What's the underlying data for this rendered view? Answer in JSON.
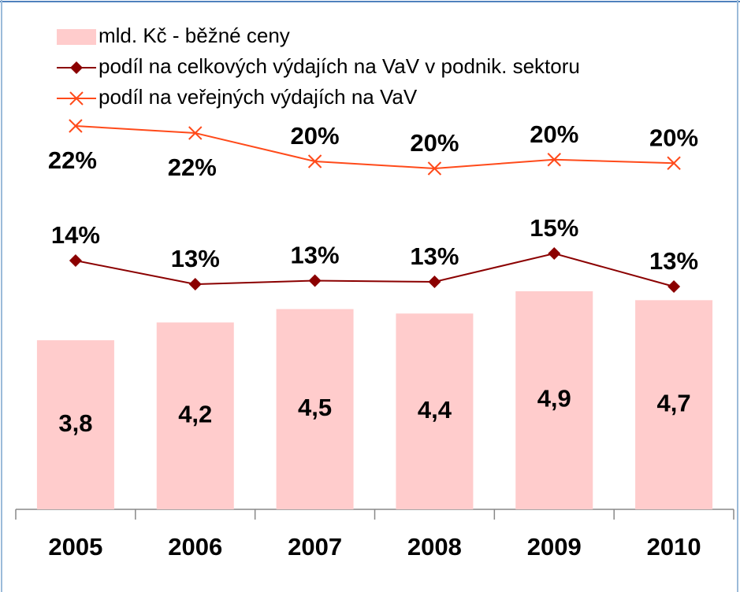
{
  "chart_data": {
    "type": "bar-line",
    "categories": [
      "2005",
      "2006",
      "2007",
      "2008",
      "2009",
      "2010"
    ],
    "series": [
      {
        "name": "mld. Kč - běžné ceny",
        "type": "bar",
        "color": "#ffcccc",
        "values": [
          3.8,
          4.2,
          4.5,
          4.4,
          4.9,
          4.7
        ],
        "value_labels": [
          "3,8",
          "4,2",
          "4,5",
          "4,4",
          "4,9",
          "4,7"
        ]
      },
      {
        "name": "podíl na celkových výdajích na VaV v podnik. sektoru",
        "type": "line",
        "marker": "diamond",
        "color": "#8b0000",
        "values": [
          14.3,
          13.3,
          13.45,
          13.4,
          14.6,
          13.2
        ],
        "value_labels": [
          "14%",
          "13%",
          "13%",
          "13%",
          "15%",
          "13%"
        ]
      },
      {
        "name": "podíl na veřejných výdajích na VaV",
        "type": "line",
        "marker": "x",
        "color": "#ff4a1a",
        "values": [
          22.4,
          22.0,
          20.4,
          20.0,
          20.5,
          20.3
        ],
        "value_labels": [
          "22%",
          "22%",
          "20%",
          "20%",
          "20%",
          "20%"
        ]
      }
    ]
  }
}
